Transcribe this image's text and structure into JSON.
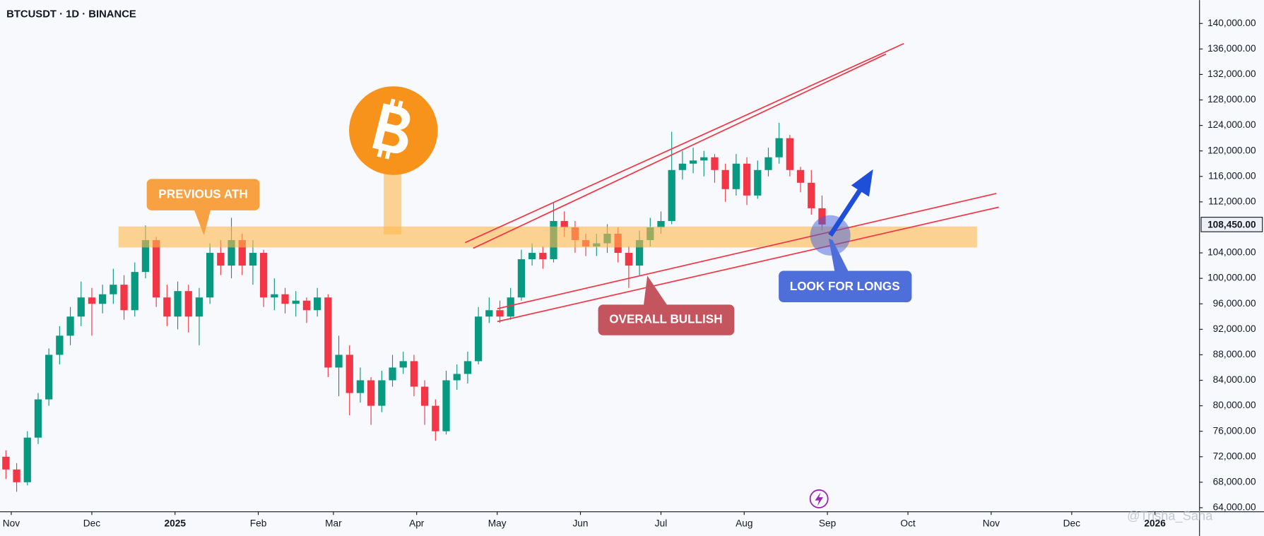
{
  "chart_data": {
    "type": "candlestick",
    "title": "BTCUSDT · 1D · BINANCE",
    "watermark": "@Trisha_Saha",
    "annotations": [
      "PREVIOUS ATH",
      "OVERALL BULLISH",
      "LOOK FOR LONGS"
    ],
    "up_color": "#089981",
    "down_color": "#f23645",
    "x": [
      -2,
      2,
      6,
      10,
      14,
      18,
      22,
      26,
      30,
      34,
      38,
      42,
      46,
      50,
      54,
      58,
      62,
      66,
      70,
      74,
      78,
      82,
      86,
      90,
      94,
      98,
      102,
      106,
      110,
      114,
      118,
      122,
      126,
      130,
      134,
      138,
      142,
      146,
      150,
      154,
      158,
      162,
      166,
      170,
      174,
      178,
      182,
      186,
      190,
      194,
      198,
      202,
      206,
      210,
      214,
      218,
      222,
      226,
      230,
      234,
      238,
      242,
      246,
      250,
      254,
      258,
      262,
      266,
      270,
      274,
      278,
      282,
      286,
      290,
      294,
      298,
      302
    ],
    "ohlc": [
      [
        72000,
        73000,
        68500,
        70000
      ],
      [
        70000,
        71000,
        66500,
        68000
      ],
      [
        68000,
        76000,
        67500,
        75000
      ],
      [
        75000,
        82000,
        74000,
        81000
      ],
      [
        81000,
        89000,
        80000,
        88000
      ],
      [
        88000,
        92500,
        86500,
        91000
      ],
      [
        91000,
        95500,
        89500,
        94000
      ],
      [
        94000,
        99500,
        92500,
        97000
      ],
      [
        97000,
        98500,
        91000,
        96000
      ],
      [
        96000,
        99000,
        94500,
        97500
      ],
      [
        97500,
        101500,
        96000,
        99000
      ],
      [
        99000,
        100500,
        93500,
        95000
      ],
      [
        95000,
        102500,
        94000,
        101000
      ],
      [
        101000,
        108300,
        100000,
        106000
      ],
      [
        106000,
        106500,
        95500,
        97000
      ],
      [
        97000,
        99000,
        92500,
        94000
      ],
      [
        94000,
        99500,
        92000,
        98000
      ],
      [
        98000,
        99000,
        91500,
        94000
      ],
      [
        94000,
        98500,
        89500,
        97000
      ],
      [
        97000,
        105500,
        96000,
        104000
      ],
      [
        104000,
        106000,
        100500,
        102000
      ],
      [
        102000,
        109500,
        100000,
        106000
      ],
      [
        106000,
        107000,
        100500,
        102000
      ],
      [
        102000,
        106000,
        99000,
        104000
      ],
      [
        104000,
        104500,
        95500,
        97000
      ],
      [
        97000,
        100000,
        95000,
        97500
      ],
      [
        97500,
        98500,
        94500,
        96000
      ],
      [
        96000,
        98000,
        94000,
        96500
      ],
      [
        96500,
        97000,
        93000,
        95000
      ],
      [
        95000,
        98500,
        94000,
        97000
      ],
      [
        97000,
        97500,
        84500,
        86000
      ],
      [
        86000,
        91000,
        81500,
        88000
      ],
      [
        88000,
        89500,
        78500,
        82000
      ],
      [
        82000,
        86000,
        80500,
        84000
      ],
      [
        84000,
        84500,
        77000,
        80000
      ],
      [
        80000,
        85500,
        79000,
        84000
      ],
      [
        84000,
        88000,
        83000,
        86000
      ],
      [
        86000,
        88500,
        85000,
        87000
      ],
      [
        87000,
        88000,
        81500,
        83000
      ],
      [
        83000,
        84000,
        77000,
        80000
      ],
      [
        80000,
        81000,
        74500,
        76000
      ],
      [
        76000,
        85500,
        75500,
        84000
      ],
      [
        84000,
        86500,
        82500,
        85000
      ],
      [
        85000,
        88500,
        83500,
        87000
      ],
      [
        87000,
        95500,
        86500,
        94000
      ],
      [
        94000,
        97000,
        93000,
        95000
      ],
      [
        95000,
        96500,
        93000,
        94000
      ],
      [
        94000,
        98500,
        93500,
        97000
      ],
      [
        97000,
        104500,
        96500,
        103000
      ],
      [
        103000,
        105500,
        102000,
        104000
      ],
      [
        104000,
        105000,
        101500,
        103000
      ],
      [
        103000,
        111900,
        102500,
        109000
      ],
      [
        109000,
        110500,
        106500,
        108000
      ],
      [
        108000,
        109000,
        104000,
        106000
      ],
      [
        106000,
        107000,
        103500,
        105000
      ],
      [
        105000,
        107000,
        103500,
        105500
      ],
      [
        105500,
        108500,
        104000,
        107000
      ],
      [
        107000,
        108000,
        102500,
        104000
      ],
      [
        104000,
        105000,
        98500,
        102000
      ],
      [
        102000,
        107500,
        100500,
        106000
      ],
      [
        106000,
        109500,
        105000,
        108000
      ],
      [
        108000,
        110500,
        107000,
        109000
      ],
      [
        109000,
        123000,
        108500,
        117000
      ],
      [
        117000,
        120000,
        115500,
        118000
      ],
      [
        118000,
        120500,
        116500,
        118500
      ],
      [
        118500,
        120000,
        116000,
        119000
      ],
      [
        119000,
        119500,
        115000,
        117000
      ],
      [
        117000,
        118000,
        112000,
        114000
      ],
      [
        114000,
        119500,
        113000,
        118000
      ],
      [
        118000,
        119000,
        111500,
        113000
      ],
      [
        113000,
        118500,
        112500,
        117000
      ],
      [
        117000,
        120500,
        116000,
        119000
      ],
      [
        119000,
        124400,
        118000,
        122000
      ],
      [
        122000,
        122500,
        116000,
        117000
      ],
      [
        117000,
        117500,
        113500,
        115000
      ],
      [
        115000,
        117000,
        110000,
        111000
      ],
      [
        111000,
        113000,
        107500,
        108450
      ]
    ],
    "xlim": [
      -4.2,
      442.6
    ],
    "xticks": [
      {
        "value": 0,
        "label": "Nov"
      },
      {
        "value": 30,
        "label": "Dec"
      },
      {
        "value": 61,
        "label": "2025"
      },
      {
        "value": 92,
        "label": "Feb"
      },
      {
        "value": 120,
        "label": "Mar"
      },
      {
        "value": 151,
        "label": "Apr"
      },
      {
        "value": 181,
        "label": "May"
      },
      {
        "value": 212,
        "label": "Jun"
      },
      {
        "value": 242,
        "label": "Jul"
      },
      {
        "value": 273,
        "label": "Aug"
      },
      {
        "value": 304,
        "label": "Sep"
      },
      {
        "value": 334,
        "label": "Oct"
      },
      {
        "value": 365,
        "label": "Nov"
      },
      {
        "value": 395,
        "label": "Dec"
      },
      {
        "value": 426,
        "label": "2026"
      }
    ],
    "ylim": [
      63370,
      143670
    ],
    "yticks": [
      {
        "value": 64000,
        "label": "64,000.00"
      },
      {
        "value": 68000,
        "label": "68,000.00"
      },
      {
        "value": 72000,
        "label": "72,000.00"
      },
      {
        "value": 76000,
        "label": "76,000.00"
      },
      {
        "value": 80000,
        "label": "80,000.00"
      },
      {
        "value": 84000,
        "label": "84,000.00"
      },
      {
        "value": 88000,
        "label": "88,000.00"
      },
      {
        "value": 92000,
        "label": "92,000.00"
      },
      {
        "value": 96000,
        "label": "96,000.00"
      },
      {
        "value": 100000,
        "label": "100,000.00"
      },
      {
        "value": 104000,
        "label": "104,000.00"
      },
      {
        "value": 112000,
        "label": "112,000.00"
      },
      {
        "value": 116000,
        "label": "116,000.00"
      },
      {
        "value": 120000,
        "label": "120,000.00"
      },
      {
        "value": 124000,
        "label": "124,000.00"
      },
      {
        "value": 128000,
        "label": "128,000.00"
      },
      {
        "value": 132000,
        "label": "132,000.00"
      },
      {
        "value": 136000,
        "label": "136,000.00"
      },
      {
        "value": 140000,
        "label": "140,000.00"
      }
    ],
    "last_price": {
      "value": 108450,
      "label": "108,450.00"
    }
  }
}
